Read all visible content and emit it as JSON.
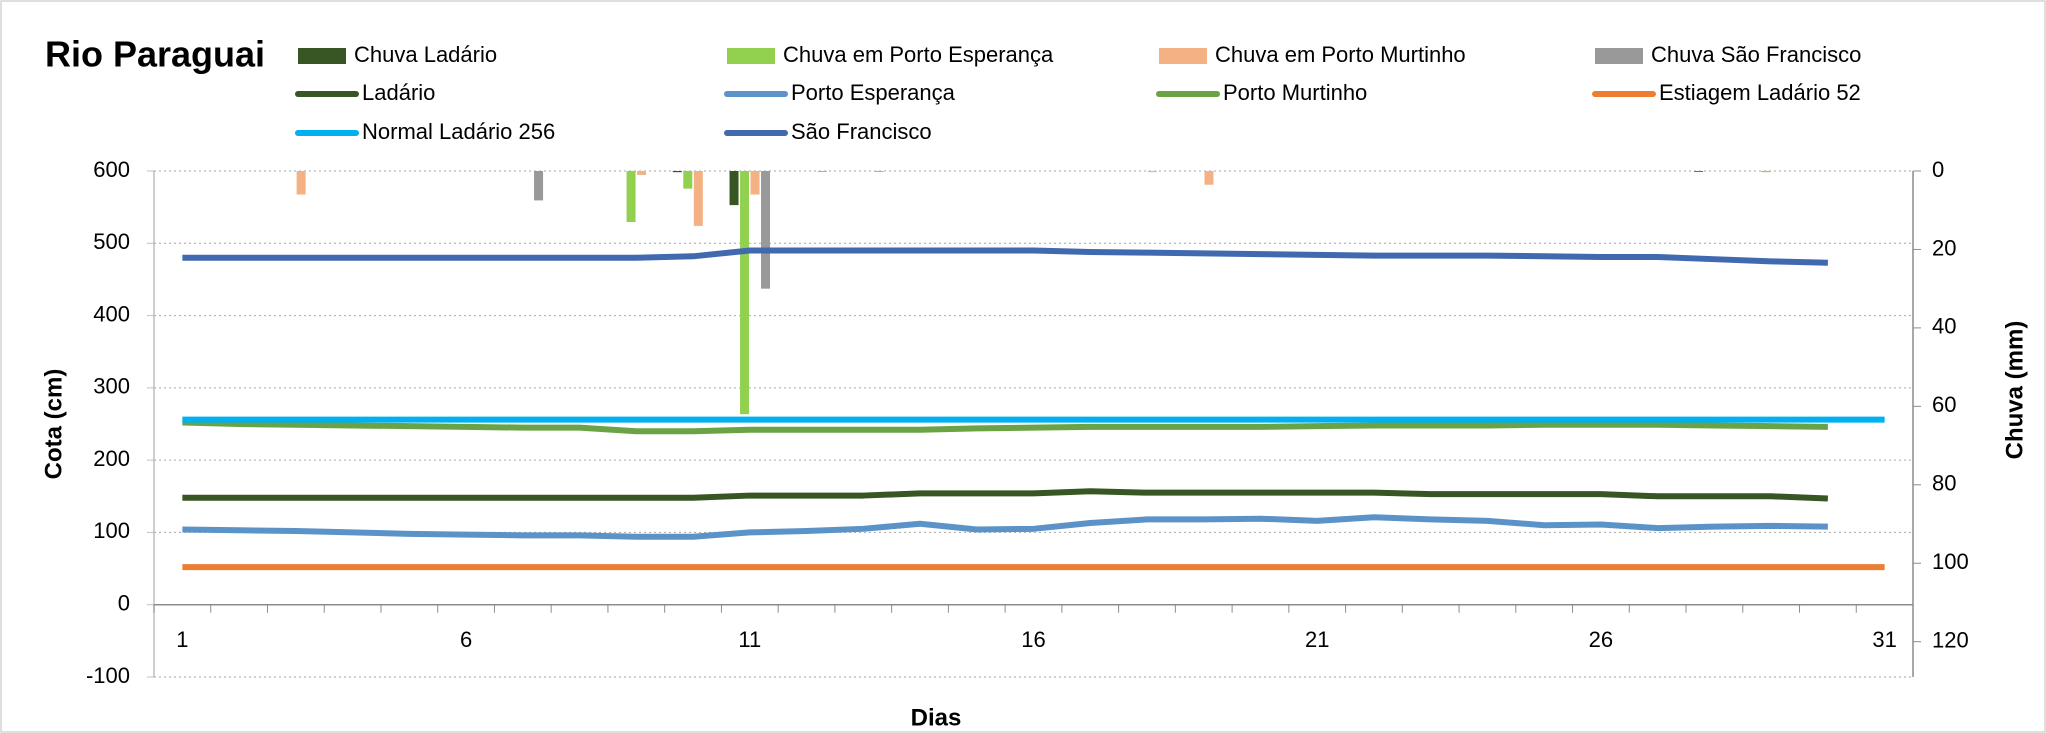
{
  "chart_data": {
    "type": "combo",
    "title": "Rio Paraguai",
    "x_label": "Dias",
    "y_label": "Cota  (cm)",
    "y2_label": "Chuva (mm)",
    "x": [
      1,
      2,
      3,
      4,
      5,
      6,
      7,
      8,
      9,
      10,
      11,
      12,
      13,
      14,
      15,
      16,
      17,
      18,
      19,
      20,
      21,
      22,
      23,
      24,
      25,
      26,
      27,
      28,
      29,
      30,
      31
    ],
    "xlim": [
      0.5,
      31.5
    ],
    "xticks": [
      1,
      6,
      11,
      16,
      21,
      26,
      31
    ],
    "ylim": [
      -100,
      600
    ],
    "yticks": [
      -100,
      0,
      100,
      200,
      300,
      400,
      500,
      600
    ],
    "y2lim": [
      0,
      129
    ],
    "y2ticks": [
      0,
      20,
      40,
      60,
      80,
      100,
      120
    ],
    "y2_inverted": true,
    "grid": true,
    "series": [
      {
        "name": "Chuva Ladário",
        "kind": "bar",
        "axis": "y2",
        "color": "#375623",
        "values": [
          0,
          0,
          0,
          0,
          0,
          0,
          0,
          0,
          0,
          0.3,
          8.7,
          0,
          0,
          0,
          0,
          0,
          0,
          0,
          0,
          0,
          0,
          0,
          0,
          0,
          0,
          0,
          0,
          0.2,
          0,
          0,
          0
        ]
      },
      {
        "name": "Chuva em Porto Esperança",
        "kind": "bar",
        "axis": "y2",
        "color": "#92d050",
        "values": [
          0,
          0,
          0,
          0,
          0,
          0,
          0,
          0,
          13,
          4.5,
          62,
          0,
          0,
          0,
          0,
          0,
          0,
          0,
          0,
          0,
          0,
          0,
          0,
          0,
          0,
          0,
          0,
          0,
          0.3,
          0,
          0
        ]
      },
      {
        "name": "Chuva em Porto Murtinho",
        "kind": "bar",
        "axis": "y2",
        "color": "#f4b183",
        "values": [
          0,
          0,
          6,
          0,
          0,
          0,
          0,
          0,
          1,
          14,
          6,
          0,
          0,
          0,
          0,
          0,
          0,
          0.3,
          3.5,
          0,
          0,
          0,
          0,
          0,
          0,
          0,
          0,
          0,
          0,
          0,
          0
        ]
      },
      {
        "name": "Chuva São Francisco",
        "kind": "bar",
        "axis": "y2",
        "color": "#999999",
        "values": [
          0,
          0,
          0,
          0,
          0,
          0,
          7.5,
          0,
          0,
          0,
          30,
          0.2,
          0.2,
          0,
          0,
          0,
          0,
          0,
          0,
          0,
          0,
          0,
          0,
          0,
          0,
          0,
          0,
          0,
          0,
          0,
          0
        ]
      },
      {
        "name": "Ladário",
        "kind": "line",
        "color": "#375623",
        "values": [
          148,
          148,
          148,
          148,
          148,
          148,
          148,
          148,
          148,
          148,
          151,
          151,
          151,
          154,
          154,
          154,
          157,
          155,
          155,
          155,
          155,
          155,
          153,
          153,
          153,
          153,
          150,
          150,
          150,
          147,
          null
        ]
      },
      {
        "name": "Porto Esperança",
        "kind": "line",
        "color": "#5b93c9",
        "values": [
          104,
          103,
          102,
          100,
          98,
          97,
          96,
          96,
          94,
          94,
          100,
          102,
          105,
          112,
          104,
          105,
          113,
          118,
          118,
          119,
          116,
          121,
          118,
          116,
          110,
          111,
          106,
          108,
          109,
          108,
          null
        ]
      },
      {
        "name": "Porto Murtinho",
        "kind": "line",
        "color": "#6aa345",
        "values": [
          252,
          250,
          249,
          248,
          247,
          246,
          245,
          245,
          240,
          240,
          242,
          242,
          242,
          242,
          244,
          245,
          246,
          246,
          246,
          246,
          247,
          248,
          248,
          248,
          249,
          249,
          249,
          248,
          247,
          246,
          null
        ]
      },
      {
        "name": "Estiagem Ladário 52",
        "kind": "line",
        "color": "#ed7d31",
        "values": [
          52,
          52,
          52,
          52,
          52,
          52,
          52,
          52,
          52,
          52,
          52,
          52,
          52,
          52,
          52,
          52,
          52,
          52,
          52,
          52,
          52,
          52,
          52,
          52,
          52,
          52,
          52,
          52,
          52,
          52,
          52
        ]
      },
      {
        "name": "Normal Ladário 256",
        "kind": "line",
        "color": "#00b0f0",
        "values": [
          256,
          256,
          256,
          256,
          256,
          256,
          256,
          256,
          256,
          256,
          256,
          256,
          256,
          256,
          256,
          256,
          256,
          256,
          256,
          256,
          256,
          256,
          256,
          256,
          256,
          256,
          256,
          256,
          256,
          256,
          256
        ]
      },
      {
        "name": "São Francisco",
        "kind": "line",
        "color": "#4169b0",
        "values": [
          480,
          480,
          480,
          480,
          480,
          480,
          480,
          480,
          480,
          482,
          490,
          490,
          490,
          490,
          490,
          490,
          488,
          487,
          486,
          485,
          484,
          483,
          483,
          483,
          482,
          481,
          481,
          478,
          475,
          473,
          null
        ]
      }
    ]
  }
}
